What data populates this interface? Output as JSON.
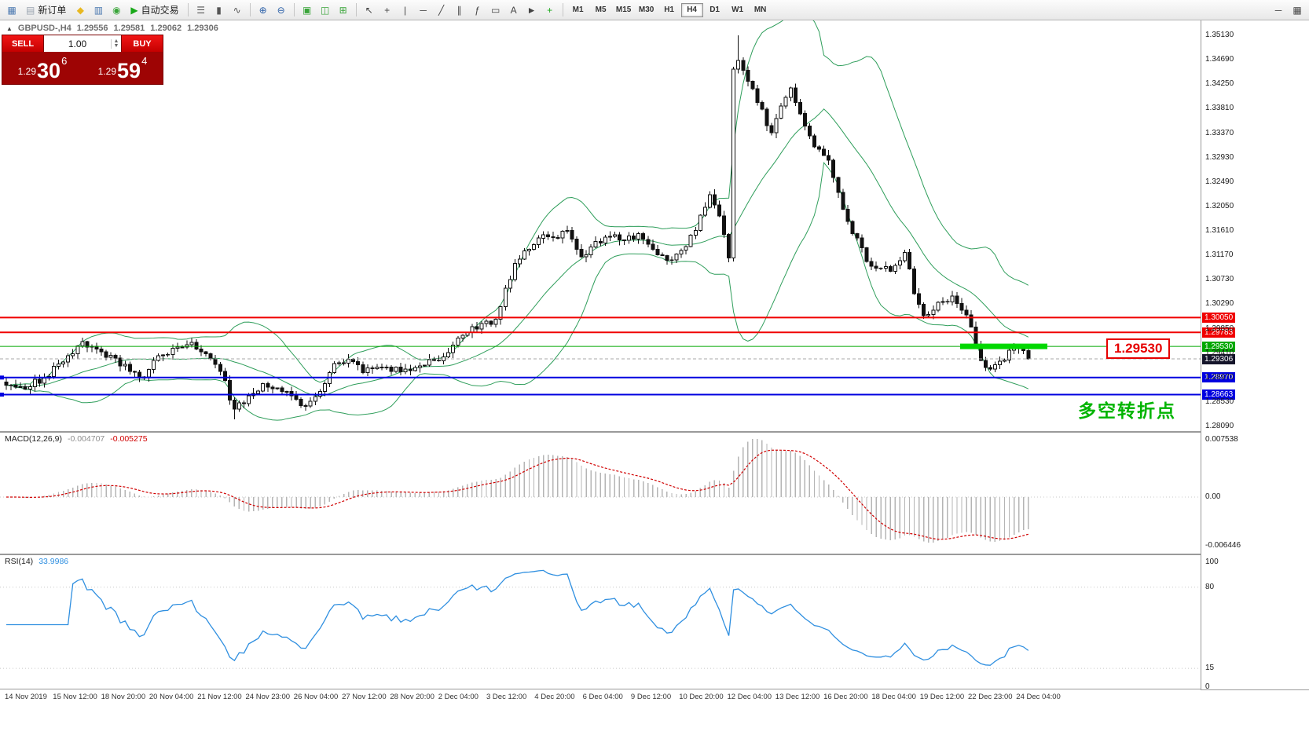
{
  "toolbar": {
    "new_order_label": "新订单",
    "auto_trading_label": "自动交易",
    "timeframes": [
      "M1",
      "M5",
      "M15",
      "M30",
      "H1",
      "H4",
      "D1",
      "W1",
      "MN"
    ],
    "active_timeframe": "H4",
    "icon_glyphs": {
      "chart-window-icon": {
        "glyph": "▦",
        "color": "#4a78b0"
      },
      "new-order-icon": {
        "glyph": "▤",
        "color": "#9aa4b0"
      },
      "profiles-icon": {
        "glyph": "◆",
        "color": "#e8b820"
      },
      "market-watch-icon": {
        "glyph": "▥",
        "color": "#4a78b0"
      },
      "data-window-icon": {
        "glyph": "◉",
        "color": "#3aa53a"
      },
      "auto-trading-icon": {
        "glyph": "▶",
        "color": "#18a818"
      },
      "bar-chart-icon": {
        "glyph": "☰",
        "color": "#555555"
      },
      "candlestick-chart-icon": {
        "glyph": "▮",
        "color": "#555555"
      },
      "line-chart-icon": {
        "glyph": "∿",
        "color": "#555555"
      },
      "zoom-in-icon": {
        "glyph": "⊕",
        "color": "#2a5fa8"
      },
      "zoom-out-icon": {
        "glyph": "⊖",
        "color": "#2a5fa8"
      },
      "tile-windows-icon": {
        "glyph": "▣",
        "color": "#3aa53a"
      },
      "cascade-windows-icon": {
        "glyph": "◫",
        "color": "#3aa53a"
      },
      "arrange-windows-icon": {
        "glyph": "⊞",
        "color": "#3aa53a"
      },
      "cursor-icon": {
        "glyph": "↖",
        "color": "#444444"
      },
      "crosshair-icon": {
        "glyph": "+",
        "color": "#444444"
      },
      "vertical-line-icon": {
        "glyph": "|",
        "color": "#444444"
      },
      "horizontal-line-icon": {
        "glyph": "─",
        "color": "#444444"
      },
      "trendline-icon": {
        "glyph": "╱",
        "color": "#444444"
      },
      "channel-icon": {
        "glyph": "∥",
        "color": "#444444"
      },
      "fibonacci-icon": {
        "glyph": "ƒ",
        "color": "#444444"
      },
      "shapes-icon": {
        "glyph": "▭",
        "color": "#444444"
      },
      "text-icon": {
        "glyph": "A",
        "color": "#444444"
      },
      "arrow-tool-icon": {
        "glyph": "►",
        "color": "#444444"
      },
      "indicators-icon": {
        "glyph": "+",
        "color": "#18a818"
      },
      "minimize-icon": {
        "glyph": "─",
        "color": "#444444"
      },
      "grid-icon": {
        "glyph": "▦",
        "color": "#444444"
      }
    }
  },
  "chart_header": {
    "collapse_arrow": "▲",
    "symbol_period": "GBPUSD-,H4",
    "open": "1.29556",
    "high": "1.29581",
    "low": "1.29062",
    "close": "1.29306"
  },
  "trade_panel": {
    "sell_label": "SELL",
    "buy_label": "BUY",
    "volume": "1.00",
    "spinner_up": "▲",
    "spinner_down": "▼",
    "sell_price": {
      "prefix": "1.29",
      "big": "30",
      "sup": "6"
    },
    "buy_price": {
      "prefix": "1.29",
      "big": "59",
      "sup": "4"
    }
  },
  "price_axis": {
    "grid_labels": [
      "1.35130",
      "1.34690",
      "1.34250",
      "1.33810",
      "1.33370",
      "1.32930",
      "1.32490",
      "1.32050",
      "1.31610",
      "1.31170",
      "1.30730",
      "1.30290",
      "1.29850",
      "1.29410",
      "1.28970",
      "1.28530",
      "1.28090"
    ]
  },
  "hlines": [
    {
      "label": "1.30050",
      "value": 1.3005,
      "color": "#f00000",
      "width": 2
    },
    {
      "label": "1.29783",
      "value": 1.29783,
      "color": "#f00000",
      "width": 2
    },
    {
      "label": "1.29530",
      "value": 1.2953,
      "color": "#00a800",
      "width": 1,
      "thick_segment": true,
      "segment_color": "#00d800"
    },
    {
      "label": "1.28970",
      "value": 1.2897,
      "color": "#0000e0",
      "width": 2,
      "handle": true
    },
    {
      "label": "1.28663",
      "value": 1.28663,
      "color": "#0000e0",
      "width": 2,
      "handle": true
    }
  ],
  "current_price": {
    "value": 1.29306,
    "label": "1.29306",
    "tag_color": "#14142a"
  },
  "price_callout": {
    "text": "1.29530",
    "color": "#e60000"
  },
  "annotation": {
    "text": "多空转折点",
    "color": "#00b400"
  },
  "macd_panel": {
    "name": "MACD(12,26,9)",
    "value_main": "-0.004707",
    "value_signal": "-0.005275",
    "axis": [
      {
        "text": "0.007538",
        "v": 0.007538
      },
      {
        "text": "0.00",
        "v": 0
      },
      {
        "text": "-0.006446",
        "v": -0.006446
      }
    ]
  },
  "rsi_panel": {
    "name": "RSI(14)",
    "value": "33.9986",
    "axis": [
      {
        "text": "100",
        "v": 100
      },
      {
        "text": "80",
        "v": 80
      },
      {
        "text": "15",
        "v": 15
      },
      {
        "text": "0",
        "v": 0
      }
    ],
    "levels": [
      80,
      15
    ]
  },
  "time_axis": [
    "14 Nov 2019",
    "15 Nov 12:00",
    "18 Nov 20:00",
    "20 Nov 04:00",
    "21 Nov 12:00",
    "24 Nov 23:00",
    "26 Nov 04:00",
    "27 Nov 12:00",
    "28 Nov 20:00",
    "2 Dec 04:00",
    "3 Dec 12:00",
    "4 Dec 20:00",
    "6 Dec 04:00",
    "9 Dec 12:00",
    "10 Dec 20:00",
    "12 Dec 04:00",
    "13 Dec 12:00",
    "16 Dec 20:00",
    "18 Dec 04:00",
    "19 Dec 12:00",
    "22 Dec 23:00",
    "24 Dec 04:00"
  ],
  "chart_data": {
    "type": "candlestick",
    "symbol": "GBPUSD-",
    "timeframe": "H4",
    "visible_price_range": [
      1.2809,
      1.3513
    ],
    "candle_count": 216,
    "last_close": 1.29306,
    "max_high": 1.3513,
    "min_low": 1.2822,
    "overlays": {
      "bollinger_period": 20,
      "bollinger_deviation": 2
    },
    "hline_values": [
      1.3005,
      1.29783,
      1.2953,
      1.2897,
      1.28663
    ],
    "close_anchors": [
      [
        0,
        1.2883
      ],
      [
        4,
        1.2876
      ],
      [
        8,
        1.2896
      ],
      [
        12,
        1.2925
      ],
      [
        16,
        1.2962
      ],
      [
        19,
        1.2948
      ],
      [
        23,
        1.2932
      ],
      [
        26,
        1.2908
      ],
      [
        29,
        1.2898
      ],
      [
        32,
        1.2936
      ],
      [
        35,
        1.295
      ],
      [
        39,
        1.296
      ],
      [
        42,
        1.294
      ],
      [
        45,
        1.2908
      ],
      [
        48,
        1.284
      ],
      [
        51,
        1.2864
      ],
      [
        54,
        1.2886
      ],
      [
        57,
        1.2878
      ],
      [
        61,
        1.2858
      ],
      [
        63,
        1.2846
      ],
      [
        66,
        1.2872
      ],
      [
        69,
        1.2922
      ],
      [
        72,
        1.293
      ],
      [
        75,
        1.2906
      ],
      [
        78,
        1.2916
      ],
      [
        81,
        1.2908
      ],
      [
        84,
        1.2912
      ],
      [
        87,
        1.2918
      ],
      [
        90,
        1.2928
      ],
      [
        93,
        1.2942
      ],
      [
        97,
        1.2978
      ],
      [
        100,
        1.2994
      ],
      [
        103,
        1.3002
      ],
      [
        105,
        1.3058
      ],
      [
        107,
        1.3102
      ],
      [
        110,
        1.3128
      ],
      [
        113,
        1.3154
      ],
      [
        116,
        1.3148
      ],
      [
        118,
        1.3162
      ],
      [
        121,
        1.3114
      ],
      [
        123,
        1.3132
      ],
      [
        126,
        1.315
      ],
      [
        130,
        1.3144
      ],
      [
        133,
        1.3156
      ],
      [
        136,
        1.3128
      ],
      [
        139,
        1.3108
      ],
      [
        142,
        1.3126
      ],
      [
        145,
        1.3162
      ],
      [
        148,
        1.3226
      ],
      [
        150,
        1.3188
      ],
      [
        152,
        1.3112
      ],
      [
        153,
        1.3452
      ],
      [
        154,
        1.3468
      ],
      [
        156,
        1.343
      ],
      [
        158,
        1.3392
      ],
      [
        161,
        1.3338
      ],
      [
        163,
        1.3386
      ],
      [
        165,
        1.3418
      ],
      [
        167,
        1.3372
      ],
      [
        169,
        1.3332
      ],
      [
        171,
        1.3308
      ],
      [
        173,
        1.3288
      ],
      [
        175,
        1.323
      ],
      [
        177,
        1.3178
      ],
      [
        179,
        1.3148
      ],
      [
        181,
        1.3106
      ],
      [
        183,
        1.3094
      ],
      [
        186,
        1.3088
      ],
      [
        189,
        1.3122
      ],
      [
        191,
        1.3048
      ],
      [
        193,
        1.3008
      ],
      [
        195,
        1.3018
      ],
      [
        197,
        1.3034
      ],
      [
        199,
        1.3044
      ],
      [
        201,
        1.3018
      ],
      [
        203,
        1.2988
      ],
      [
        205,
        1.2928
      ],
      [
        207,
        1.2912
      ],
      [
        209,
        1.2926
      ],
      [
        211,
        1.2946
      ],
      [
        213,
        1.2952
      ],
      [
        215,
        1.29306
      ]
    ]
  }
}
